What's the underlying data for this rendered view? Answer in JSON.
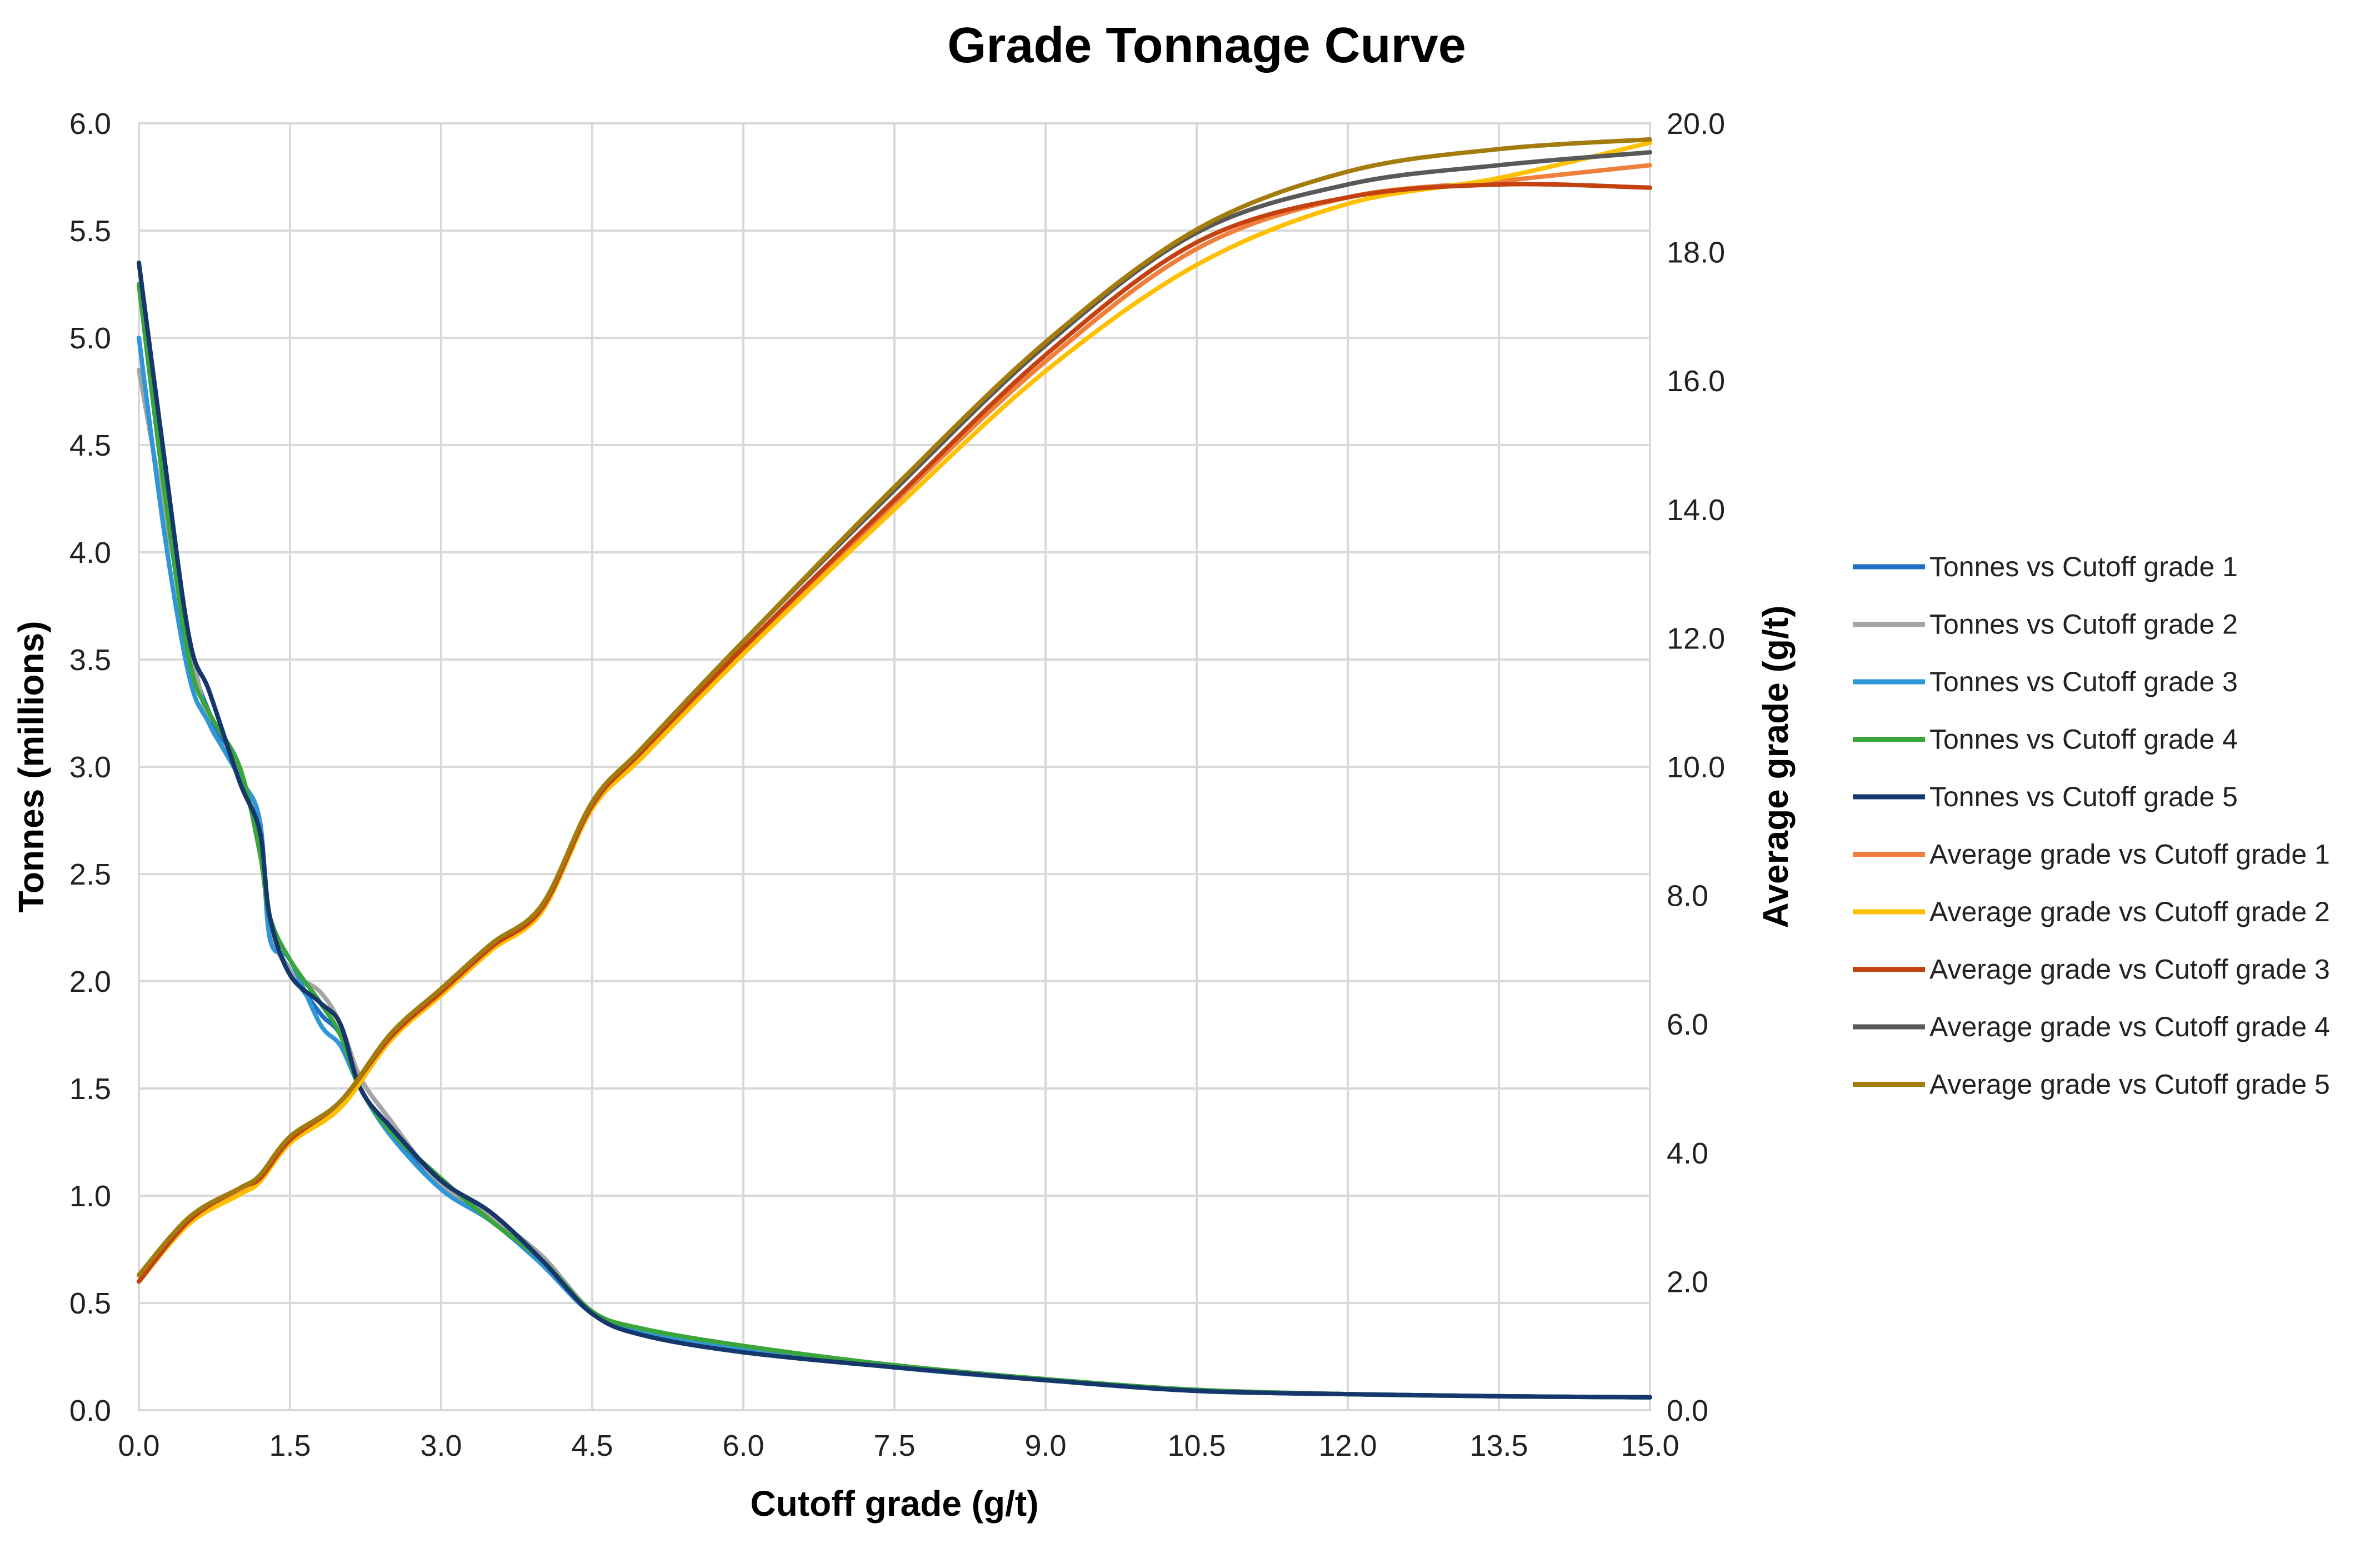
{
  "chart_data": {
    "type": "line",
    "title": "Grade Tonnage Curve",
    "xlabel": "Cutoff grade (g/t)",
    "ylabel_left": "Tonnes (millions)",
    "ylabel_right": "Average grade (g/t)",
    "xlim": [
      0,
      15
    ],
    "ylim_left": [
      0,
      6
    ],
    "ylim_right": [
      0,
      20
    ],
    "x_ticks": [
      "0.0",
      "1.5",
      "3.0",
      "4.5",
      "6.0",
      "7.5",
      "9.0",
      "10.5",
      "12.0",
      "13.5",
      "15.0"
    ],
    "y_left_ticks": [
      "0.0",
      "0.5",
      "1.0",
      "1.5",
      "2.0",
      "2.5",
      "3.0",
      "3.5",
      "4.0",
      "4.5",
      "5.0",
      "5.5",
      "6.0"
    ],
    "y_right_ticks": [
      "0.0",
      "2.0",
      "4.0",
      "6.0",
      "8.0",
      "10.0",
      "12.0",
      "14.0",
      "16.0",
      "18.0",
      "20.0"
    ],
    "grid": true,
    "legend_position": "right",
    "series": [
      {
        "name": "Tonnes vs Cutoff grade 1",
        "axis": "left",
        "color": "#1f6fc4",
        "x": [
          0,
          0.25,
          0.5,
          0.7,
          1.0,
          1.2,
          1.3,
          1.5,
          1.8,
          2.0,
          2.2,
          2.5,
          3.0,
          3.5,
          4.0,
          4.5,
          5.0,
          6.0,
          7.5,
          9.0,
          10.5,
          12.0,
          13.5,
          15.0
        ],
        "y": [
          5.25,
          4.3,
          3.55,
          3.25,
          2.95,
          2.7,
          2.25,
          2.05,
          1.85,
          1.75,
          1.5,
          1.3,
          1.05,
          0.9,
          0.68,
          0.45,
          0.36,
          0.28,
          0.2,
          0.14,
          0.09,
          0.075,
          0.065,
          0.06
        ]
      },
      {
        "name": "Tonnes vs Cutoff grade 2",
        "axis": "left",
        "color": "#a5a5a5",
        "x": [
          0,
          0.25,
          0.5,
          0.7,
          1.0,
          1.2,
          1.3,
          1.5,
          1.8,
          2.0,
          2.2,
          2.5,
          3.0,
          3.5,
          4.0,
          4.5,
          5.0,
          6.0,
          7.5,
          9.0,
          10.5,
          12.0,
          13.5,
          15.0
        ],
        "y": [
          4.85,
          4.2,
          3.6,
          3.2,
          2.98,
          2.65,
          2.25,
          2.05,
          1.95,
          1.8,
          1.55,
          1.35,
          1.05,
          0.9,
          0.72,
          0.46,
          0.37,
          0.29,
          0.2,
          0.14,
          0.095,
          0.075,
          0.065,
          0.06
        ]
      },
      {
        "name": "Tonnes vs Cutoff grade 3",
        "axis": "left",
        "color": "#2f96d8",
        "x": [
          0,
          0.25,
          0.5,
          0.7,
          1.0,
          1.2,
          1.3,
          1.5,
          1.8,
          2.0,
          2.2,
          2.5,
          3.0,
          3.5,
          4.0,
          4.5,
          5.0,
          6.0,
          7.5,
          9.0,
          10.5,
          12.0,
          13.5,
          15.0
        ],
        "y": [
          5.0,
          4.1,
          3.42,
          3.2,
          2.95,
          2.75,
          2.2,
          2.1,
          1.8,
          1.7,
          1.5,
          1.28,
          1.03,
          0.88,
          0.68,
          0.45,
          0.36,
          0.28,
          0.2,
          0.14,
          0.09,
          0.075,
          0.065,
          0.06
        ]
      },
      {
        "name": "Tonnes vs Cutoff grade 4",
        "axis": "left",
        "color": "#3aa53a",
        "x": [
          0,
          0.25,
          0.5,
          0.7,
          1.0,
          1.2,
          1.3,
          1.5,
          1.8,
          2.0,
          2.2,
          2.5,
          3.0,
          3.5,
          4.0,
          4.5,
          5.0,
          6.0,
          7.5,
          9.0,
          10.5,
          12.0,
          13.5,
          15.0
        ],
        "y": [
          5.25,
          4.3,
          3.5,
          3.25,
          3.0,
          2.6,
          2.3,
          2.1,
          1.9,
          1.75,
          1.5,
          1.3,
          1.08,
          0.88,
          0.7,
          0.46,
          0.38,
          0.3,
          0.21,
          0.145,
          0.095,
          0.075,
          0.065,
          0.06
        ]
      },
      {
        "name": "Tonnes vs Cutoff grade 5",
        "axis": "left",
        "color": "#16376b",
        "x": [
          0,
          0.25,
          0.5,
          0.7,
          1.0,
          1.2,
          1.3,
          1.5,
          1.8,
          2.0,
          2.2,
          2.5,
          3.0,
          3.5,
          4.0,
          4.5,
          5.0,
          6.0,
          7.5,
          9.0,
          10.5,
          12.0,
          13.5,
          15.0
        ],
        "y": [
          5.35,
          4.45,
          3.6,
          3.35,
          2.93,
          2.7,
          2.3,
          2.03,
          1.9,
          1.8,
          1.5,
          1.32,
          1.07,
          0.92,
          0.7,
          0.45,
          0.35,
          0.27,
          0.2,
          0.14,
          0.09,
          0.075,
          0.065,
          0.06
        ]
      },
      {
        "name": "Average grade vs Cutoff grade 1",
        "axis": "right",
        "color": "#f07f3c",
        "x": [
          0,
          0.5,
          1.0,
          1.2,
          1.5,
          2.0,
          2.5,
          3.0,
          3.5,
          4.0,
          4.5,
          5.0,
          6.0,
          7.5,
          9.0,
          10.5,
          12.0,
          13.5,
          15.0
        ],
        "y": [
          2.0,
          2.95,
          3.4,
          3.6,
          4.2,
          4.75,
          5.8,
          6.5,
          7.2,
          7.8,
          9.4,
          10.2,
          11.8,
          14.1,
          16.3,
          18.05,
          18.85,
          19.1,
          19.35
        ]
      },
      {
        "name": "Average grade vs Cutoff grade 2",
        "axis": "right",
        "color": "#ffc000",
        "x": [
          0,
          0.5,
          1.0,
          1.2,
          1.5,
          2.0,
          2.5,
          3.0,
          3.5,
          4.0,
          4.5,
          5.0,
          6.0,
          7.5,
          9.0,
          10.5,
          12.0,
          13.5,
          15.0
        ],
        "y": [
          2.0,
          2.9,
          3.35,
          3.55,
          4.15,
          4.7,
          5.75,
          6.45,
          7.15,
          7.75,
          9.35,
          10.15,
          11.75,
          14.0,
          16.15,
          17.8,
          18.75,
          19.15,
          19.7
        ]
      },
      {
        "name": "Average grade vs Cutoff grade 3",
        "axis": "right",
        "color": "#c4420f",
        "x": [
          0,
          0.5,
          1.0,
          1.2,
          1.5,
          2.0,
          2.5,
          3.0,
          3.5,
          4.0,
          4.5,
          5.0,
          6.0,
          7.5,
          9.0,
          10.5,
          12.0,
          13.5,
          15.0
        ],
        "y": [
          2.0,
          2.95,
          3.45,
          3.6,
          4.2,
          4.8,
          5.8,
          6.5,
          7.2,
          7.8,
          9.4,
          10.25,
          11.85,
          14.15,
          16.4,
          18.15,
          18.85,
          19.05,
          19.0
        ]
      },
      {
        "name": "Average grade vs Cutoff grade 4",
        "axis": "right",
        "color": "#595959",
        "x": [
          0,
          0.5,
          1.0,
          1.2,
          1.5,
          2.0,
          2.5,
          3.0,
          3.5,
          4.0,
          4.5,
          5.0,
          6.0,
          7.5,
          9.0,
          10.5,
          12.0,
          13.5,
          15.0
        ],
        "y": [
          2.1,
          3.0,
          3.45,
          3.65,
          4.25,
          4.8,
          5.85,
          6.55,
          7.25,
          7.85,
          9.45,
          10.3,
          11.95,
          14.3,
          16.55,
          18.3,
          19.05,
          19.35,
          19.55
        ]
      },
      {
        "name": "Average grade vs Cutoff grade 5",
        "axis": "right",
        "color": "#a37c0d",
        "x": [
          0,
          0.5,
          1.0,
          1.2,
          1.5,
          2.0,
          2.5,
          3.0,
          3.5,
          4.0,
          4.5,
          5.0,
          6.0,
          7.5,
          9.0,
          10.5,
          12.0,
          13.5,
          15.0
        ],
        "y": [
          2.1,
          3.0,
          3.45,
          3.65,
          4.25,
          4.8,
          5.85,
          6.55,
          7.25,
          7.85,
          9.45,
          10.3,
          11.95,
          14.35,
          16.6,
          18.35,
          19.25,
          19.6,
          19.75
        ]
      }
    ]
  }
}
